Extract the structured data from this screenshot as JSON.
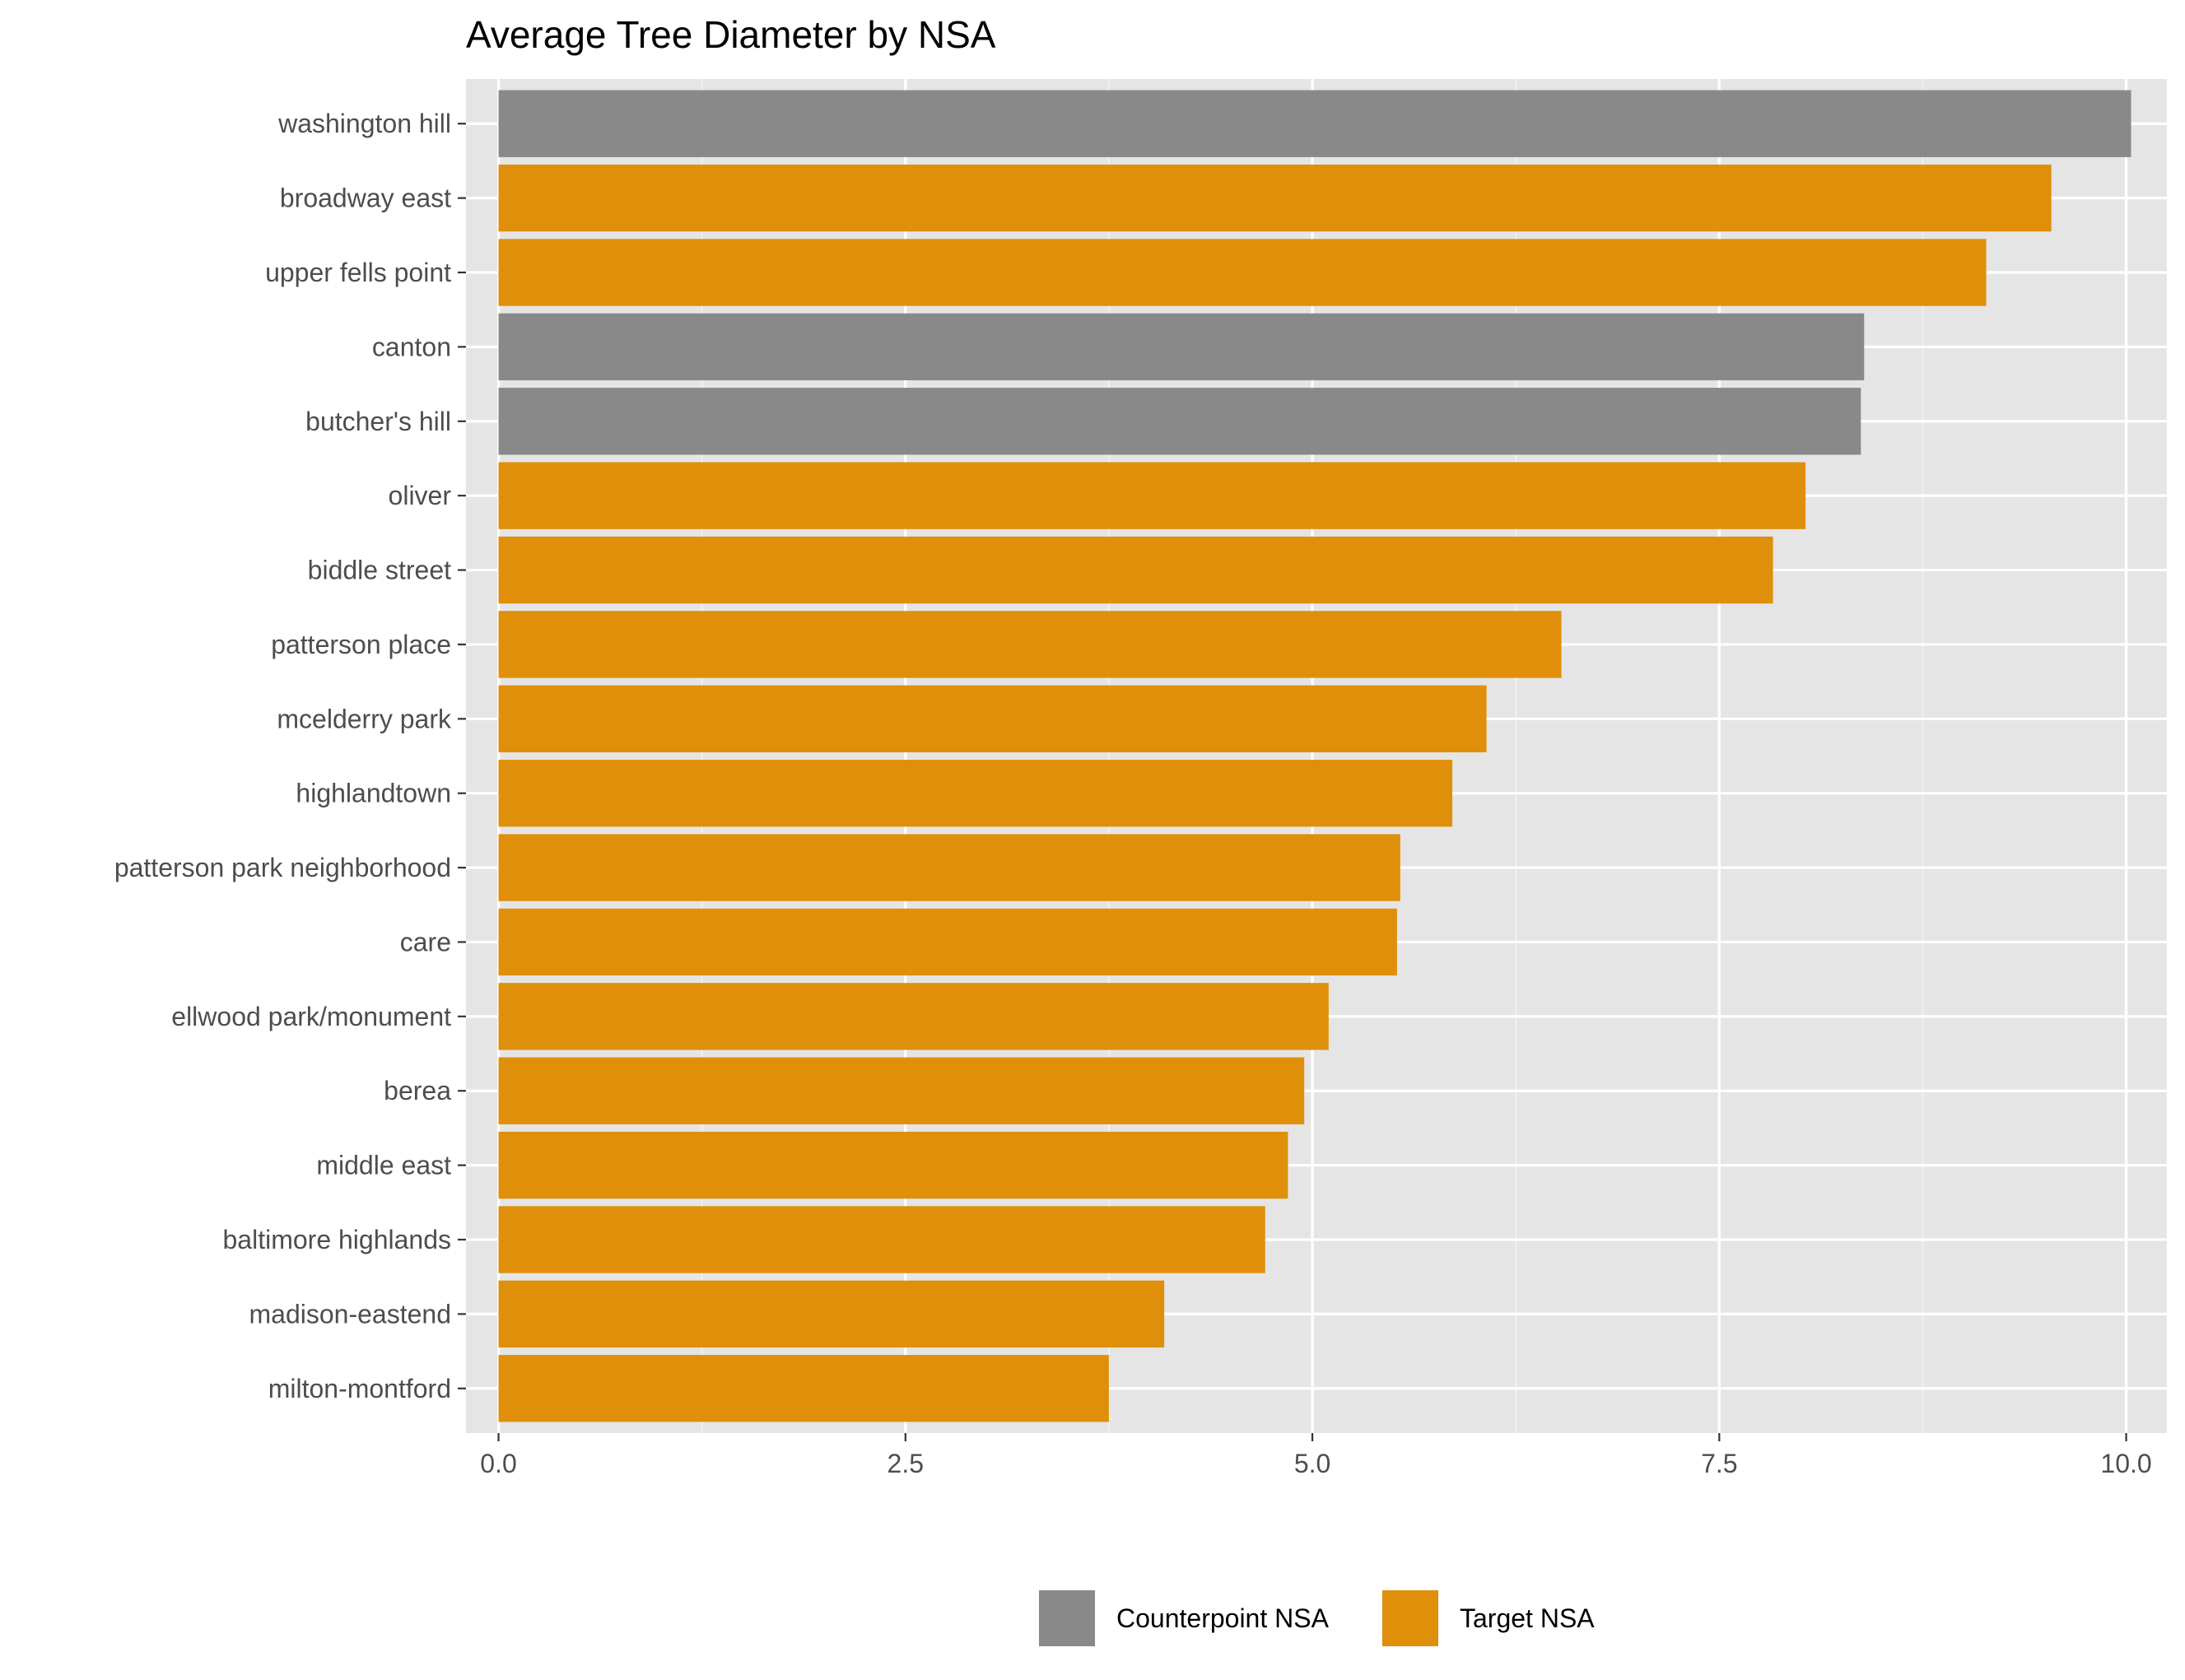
{
  "chart_data": {
    "type": "bar",
    "orientation": "horizontal",
    "title": "Average Tree Diameter by NSA",
    "xlabel": "",
    "ylabel": "",
    "xlim": [
      -0.2,
      10.25
    ],
    "x_ticks": [
      0.0,
      2.5,
      5.0,
      7.5,
      10.0
    ],
    "x_tick_labels": [
      "0.0",
      "2.5",
      "5.0",
      "7.5",
      "10.0"
    ],
    "grid": true,
    "legend_position": "bottom",
    "categories": [
      "washington hill",
      "broadway east",
      "upper fells point",
      "canton",
      "butcher's hill",
      "oliver",
      "biddle street",
      "patterson place",
      "mcelderry park",
      "highlandtown",
      "patterson park neighborhood",
      "care",
      "ellwood park/monument",
      "berea",
      "middle east",
      "baltimore highlands",
      "madison-eastend",
      "milton-montford"
    ],
    "values": [
      10.03,
      9.54,
      9.14,
      8.39,
      8.37,
      8.03,
      7.83,
      6.53,
      6.07,
      5.86,
      5.54,
      5.52,
      5.1,
      4.95,
      4.85,
      4.71,
      4.09,
      3.75
    ],
    "groups": [
      "Counterpoint NSA",
      "Target NSA",
      "Target NSA",
      "Counterpoint NSA",
      "Counterpoint NSA",
      "Target NSA",
      "Target NSA",
      "Target NSA",
      "Target NSA",
      "Target NSA",
      "Target NSA",
      "Target NSA",
      "Target NSA",
      "Target NSA",
      "Target NSA",
      "Target NSA",
      "Target NSA",
      "Target NSA"
    ],
    "legend": [
      {
        "name": "Counterpoint NSA",
        "color": "#898989"
      },
      {
        "name": "Target NSA",
        "color": "#df8f0a"
      }
    ],
    "colors": {
      "panel_background": "#e5e5e5",
      "grid_major": "#ffffff",
      "grid_minor": "#f2f2f2",
      "tick_text": "#4d4d4d",
      "tick_mark": "#333333"
    }
  }
}
